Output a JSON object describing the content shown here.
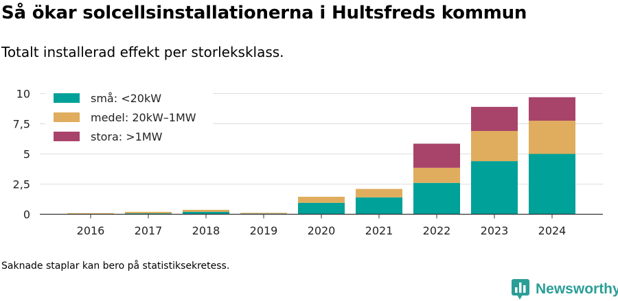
{
  "header": {
    "title": "Så ökar solcellsinstallationerna i Hultsfreds kommun",
    "subtitle": "Totalt installerad effekt per storleksklass."
  },
  "footer": {
    "note": "Saknade staplar kan bero på statistiksekretess.",
    "brand": "Newsworthy"
  },
  "icons": {
    "brand": "bar-chart-speech-bubble-icon"
  },
  "colors": {
    "brand": "#2a9e97",
    "grid": "#dddddd",
    "axis": "#333333"
  },
  "chart_data": {
    "type": "bar",
    "stacked": true,
    "categories": [
      "2016",
      "2017",
      "2018",
      "2019",
      "2020",
      "2021",
      "2022",
      "2023",
      "2024"
    ],
    "series": [
      {
        "name": "små: <20kW",
        "color": "#00a199",
        "values": [
          0.02,
          0.08,
          0.2,
          0.05,
          0.95,
          1.4,
          2.6,
          4.4,
          5.0
        ]
      },
      {
        "name": "medel: 20kW–1MW",
        "color": "#dfad5d",
        "values": [
          0.07,
          0.12,
          0.17,
          0.07,
          0.5,
          0.7,
          1.25,
          2.5,
          2.75
        ]
      },
      {
        "name": "stora: >1MW",
        "color": "#a8446a",
        "values": [
          0,
          0,
          0,
          0,
          0,
          0,
          2.0,
          2.0,
          1.95
        ]
      }
    ],
    "yticks": [
      "0",
      "2,5",
      "5",
      "7,5",
      "10"
    ],
    "ytick_values": [
      0,
      2.5,
      5,
      7.5,
      10
    ],
    "ylim": [
      0,
      10
    ],
    "grid": true,
    "legend_position": "top-left"
  }
}
